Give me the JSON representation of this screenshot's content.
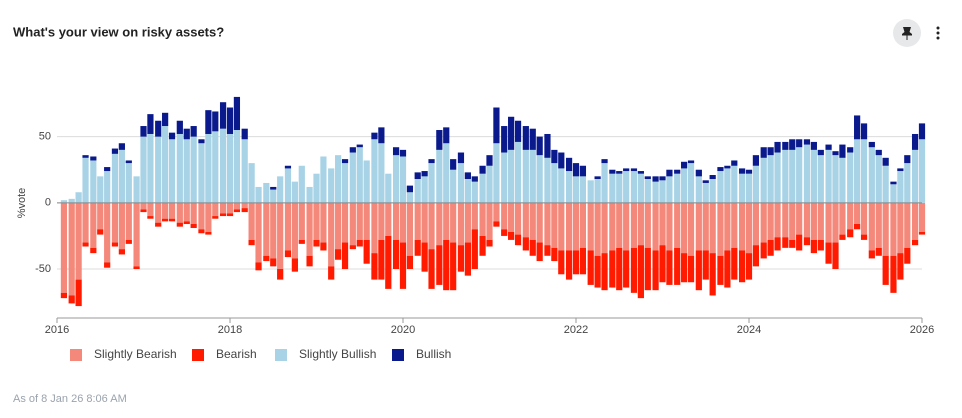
{
  "chart_data": {
    "type": "bar",
    "title": "What's your view on risky assets?",
    "y_label": "%vote",
    "footnote": "As of 8 Jan 26 8:06 AM",
    "stacked": true,
    "grid": true,
    "legend": "bottom-left",
    "xlim": [
      2016,
      2026
    ],
    "xticks": [
      2016,
      2018,
      2020,
      2022,
      2024,
      2026
    ],
    "ylim": [
      -87,
      89
    ],
    "yticks": [
      -50,
      0,
      50
    ],
    "x": [
      2016.08,
      2016.17,
      2016.25,
      2016.33,
      2016.42,
      2016.5,
      2016.58,
      2016.67,
      2016.75,
      2016.83,
      2016.92,
      2017,
      2017.08,
      2017.17,
      2017.25,
      2017.33,
      2017.42,
      2017.5,
      2017.58,
      2017.67,
      2017.75,
      2017.83,
      2017.92,
      2018,
      2018.08,
      2018.17,
      2018.25,
      2018.33,
      2018.42,
      2018.5,
      2018.58,
      2018.67,
      2018.75,
      2018.83,
      2018.92,
      2019,
      2019.08,
      2019.17,
      2019.25,
      2019.33,
      2019.42,
      2019.5,
      2019.58,
      2019.67,
      2019.75,
      2019.83,
      2019.92,
      2020,
      2020.08,
      2020.17,
      2020.25,
      2020.33,
      2020.42,
      2020.5,
      2020.58,
      2020.67,
      2020.75,
      2020.83,
      2020.92,
      2021,
      2021.08,
      2021.17,
      2021.25,
      2021.33,
      2021.42,
      2021.5,
      2021.58,
      2021.67,
      2021.75,
      2021.83,
      2021.92,
      2022,
      2022.08,
      2022.17,
      2022.25,
      2022.33,
      2022.42,
      2022.5,
      2022.58,
      2022.67,
      2022.75,
      2022.83,
      2022.92,
      2023,
      2023.08,
      2023.17,
      2023.25,
      2023.33,
      2023.42,
      2023.5,
      2023.58,
      2023.67,
      2023.75,
      2023.83,
      2023.92,
      2024,
      2024.08,
      2024.17,
      2024.25,
      2024.33,
      2024.42,
      2024.5,
      2024.58,
      2024.67,
      2024.75,
      2024.83,
      2024.92,
      2025,
      2025.08,
      2025.17,
      2025.25,
      2025.33,
      2025.42,
      2025.5,
      2025.58,
      2025.67,
      2025.75,
      2025.83,
      2025.92,
      2026
    ],
    "series": [
      {
        "name": "Slightly Bearish",
        "color": "#f4897b",
        "values": [
          -68,
          -70,
          -58,
          -30,
          -34,
          -20,
          -45,
          -30,
          -35,
          -28,
          -48,
          -5,
          -10,
          -15,
          -12,
          -12,
          -15,
          -14,
          -16,
          -20,
          -22,
          -10,
          -8,
          -8,
          -5,
          -4,
          -28,
          -45,
          -40,
          -42,
          -50,
          -36,
          -42,
          -28,
          -40,
          -28,
          -30,
          -48,
          -35,
          -30,
          -32,
          -28,
          -28,
          -38,
          -28,
          -25,
          -28,
          -30,
          -40,
          -28,
          -30,
          -35,
          -32,
          -28,
          -30,
          -32,
          -30,
          -20,
          -25,
          -28,
          -14,
          -20,
          -22,
          -24,
          -26,
          -28,
          -30,
          -32,
          -34,
          -36,
          -36,
          -36,
          -34,
          -36,
          -40,
          -38,
          -36,
          -34,
          -36,
          -34,
          -32,
          -34,
          -36,
          -32,
          -36,
          -34,
          -38,
          -40,
          -36,
          -36,
          -38,
          -40,
          -36,
          -34,
          -36,
          -38,
          -32,
          -30,
          -28,
          -26,
          -26,
          -28,
          -24,
          -26,
          -28,
          -28,
          -30,
          -30,
          -24,
          -20,
          -16,
          -24,
          -36,
          -34,
          -40,
          -40,
          -38,
          -34,
          -28,
          -22
        ]
      },
      {
        "name": "Bearish",
        "color": "#ff1a00",
        "values": [
          -4,
          -6,
          -20,
          -3,
          -4,
          -4,
          -4,
          -3,
          -4,
          -3,
          -2,
          -2,
          -2,
          -3,
          -2,
          -2,
          -3,
          -2,
          -3,
          -3,
          -2,
          -2,
          -2,
          -2,
          -2,
          -3,
          -4,
          -6,
          -4,
          -6,
          -8,
          -5,
          -10,
          -3,
          -8,
          -5,
          -6,
          -10,
          -8,
          -20,
          -3,
          -5,
          -18,
          -20,
          -30,
          -40,
          -22,
          -35,
          -10,
          -12,
          -22,
          -30,
          -30,
          -38,
          -36,
          -20,
          -25,
          -30,
          -15,
          -5,
          -4,
          -5,
          -6,
          -8,
          -10,
          -12,
          -14,
          -8,
          -10,
          -18,
          -22,
          -18,
          -20,
          -26,
          -24,
          -28,
          -28,
          -32,
          -28,
          -34,
          -40,
          -32,
          -30,
          -28,
          -26,
          -28,
          -22,
          -20,
          -30,
          -22,
          -32,
          -22,
          -28,
          -24,
          -24,
          -20,
          -16,
          -12,
          -12,
          -10,
          -8,
          -6,
          -12,
          -6,
          -10,
          -8,
          -16,
          -20,
          -4,
          -6,
          -4,
          -4,
          -6,
          -6,
          -22,
          -28,
          -20,
          -12,
          -4,
          -2
        ]
      },
      {
        "name": "Slightly Bullish",
        "color": "#a8d3e6",
        "values": [
          2,
          3,
          8,
          34,
          32,
          20,
          24,
          37,
          40,
          30,
          20,
          50,
          52,
          50,
          58,
          48,
          52,
          48,
          50,
          45,
          52,
          54,
          56,
          52,
          55,
          48,
          30,
          12,
          15,
          10,
          20,
          26,
          16,
          28,
          12,
          22,
          35,
          26,
          36,
          30,
          38,
          42,
          32,
          48,
          45,
          22,
          36,
          35,
          8,
          18,
          20,
          30,
          40,
          45,
          25,
          30,
          18,
          16,
          22,
          28,
          45,
          38,
          40,
          46,
          40,
          40,
          36,
          34,
          30,
          26,
          24,
          20,
          20,
          17,
          18,
          30,
          22,
          22,
          24,
          24,
          22,
          18,
          16,
          17,
          20,
          22,
          26,
          30,
          20,
          15,
          18,
          24,
          26,
          28,
          22,
          22,
          28,
          34,
          36,
          38,
          40,
          40,
          42,
          44,
          40,
          36,
          40,
          36,
          34,
          38,
          48,
          48,
          42,
          36,
          28,
          14,
          24,
          30,
          40,
          48
        ]
      },
      {
        "name": "Bullish",
        "color": "#0a1a8c",
        "values": [
          0,
          0,
          0,
          2,
          3,
          0,
          3,
          4,
          5,
          2,
          0,
          8,
          15,
          12,
          10,
          5,
          10,
          8,
          8,
          3,
          18,
          15,
          20,
          20,
          25,
          8,
          0,
          0,
          0,
          2,
          0,
          2,
          0,
          0,
          0,
          0,
          0,
          0,
          0,
          3,
          4,
          2,
          0,
          5,
          12,
          0,
          6,
          5,
          5,
          5,
          4,
          3,
          15,
          12,
          8,
          8,
          5,
          4,
          6,
          8,
          27,
          20,
          25,
          16,
          18,
          16,
          14,
          18,
          10,
          12,
          10,
          10,
          8,
          0,
          2,
          3,
          3,
          2,
          2,
          2,
          2,
          2,
          4,
          3,
          5,
          3,
          5,
          2,
          5,
          2,
          3,
          3,
          2,
          4,
          4,
          3,
          8,
          8,
          6,
          8,
          6,
          8,
          6,
          4,
          6,
          4,
          4,
          3,
          10,
          4,
          18,
          12,
          4,
          4,
          6,
          2,
          2,
          6,
          12,
          12
        ]
      }
    ]
  }
}
